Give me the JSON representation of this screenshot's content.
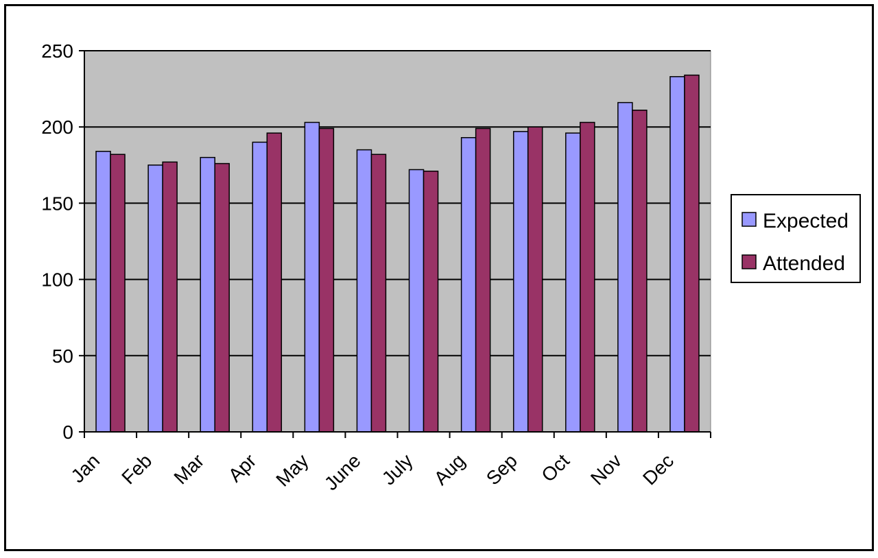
{
  "chart_data": {
    "type": "bar",
    "title": "",
    "xlabel": "",
    "ylabel": "",
    "categories": [
      "Jan",
      "Feb",
      "Mar",
      "Apr",
      "May",
      "June",
      "July",
      "Aug",
      "Sep",
      "Oct",
      "Nov",
      "Dec"
    ],
    "series": [
      {
        "name": "Expected",
        "color": "#9999ff",
        "values": [
          184,
          175,
          180,
          190,
          203,
          185,
          172,
          193,
          197,
          196,
          216,
          233
        ]
      },
      {
        "name": "Attended",
        "color": "#993366",
        "values": [
          182,
          177,
          176,
          196,
          199,
          182,
          171,
          199,
          200,
          203,
          211,
          234
        ]
      }
    ],
    "ylim": [
      0,
      250
    ],
    "yticks": [
      0,
      50,
      100,
      150,
      200,
      250
    ],
    "grid": true,
    "plot_background": "#c0c0c0",
    "legend_position": "right"
  }
}
